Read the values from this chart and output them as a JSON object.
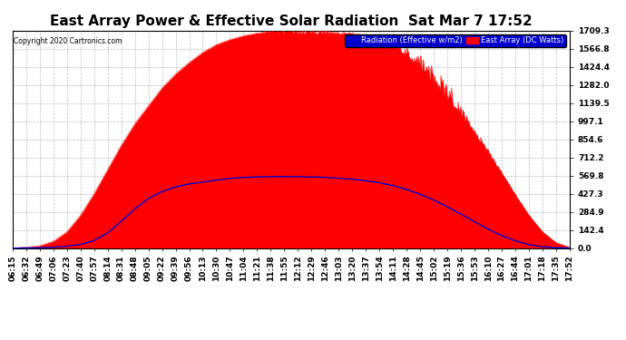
{
  "title": "East Array Power & Effective Solar Radiation  Sat Mar 7 17:52",
  "copyright": "Copyright 2020 Cartronics.com",
  "legend_radiation": "Radiation (Effective w/m2)",
  "legend_array": "East Array (DC Watts)",
  "ymax": 1709.3,
  "yticks": [
    0.0,
    142.4,
    284.9,
    427.3,
    569.8,
    712.2,
    854.6,
    997.1,
    1139.5,
    1282.0,
    1424.4,
    1566.8,
    1709.3
  ],
  "background_color": "#ffffff",
  "plot_bg": "#ffffff",
  "radiation_fill": "#ff0000",
  "radiation_line": "#ff0000",
  "array_line": "#0000cc",
  "title_fontsize": 11,
  "tick_label_fontsize": 6.5,
  "xtick_labels": [
    "06:15",
    "06:32",
    "06:49",
    "07:06",
    "07:23",
    "07:40",
    "07:57",
    "08:14",
    "08:31",
    "08:48",
    "09:05",
    "09:22",
    "09:39",
    "09:56",
    "10:13",
    "10:30",
    "10:47",
    "11:04",
    "11:21",
    "11:38",
    "11:55",
    "12:12",
    "12:29",
    "12:46",
    "13:03",
    "13:20",
    "13:37",
    "13:54",
    "14:11",
    "14:28",
    "14:45",
    "15:02",
    "15:19",
    "15:36",
    "15:53",
    "16:10",
    "16:27",
    "16:44",
    "17:01",
    "17:18",
    "17:35",
    "17:52"
  ],
  "n_points": 42,
  "radiation_profile": [
    2,
    8,
    20,
    55,
    130,
    260,
    430,
    620,
    810,
    980,
    1120,
    1260,
    1370,
    1460,
    1540,
    1600,
    1640,
    1670,
    1690,
    1700,
    1705,
    1700,
    1695,
    1690,
    1685,
    1680,
    1660,
    1630,
    1590,
    1530,
    1440,
    1330,
    1200,
    1060,
    910,
    750,
    590,
    420,
    260,
    130,
    45,
    8
  ],
  "radiation_noise": [
    0,
    0,
    0,
    0,
    0,
    0,
    0,
    0,
    0,
    0,
    0,
    0,
    0,
    0,
    0,
    0,
    0,
    0,
    0,
    30,
    50,
    60,
    40,
    30,
    20,
    20,
    20,
    30,
    50,
    80,
    120,
    150,
    180,
    80,
    60,
    40,
    20,
    10,
    5,
    0,
    0,
    0
  ],
  "array_profile": [
    0,
    2,
    4,
    8,
    15,
    30,
    60,
    120,
    210,
    310,
    390,
    445,
    480,
    505,
    520,
    535,
    548,
    556,
    560,
    562,
    563,
    562,
    560,
    556,
    550,
    542,
    530,
    514,
    492,
    462,
    424,
    378,
    325,
    268,
    208,
    150,
    100,
    58,
    28,
    12,
    4,
    1
  ]
}
